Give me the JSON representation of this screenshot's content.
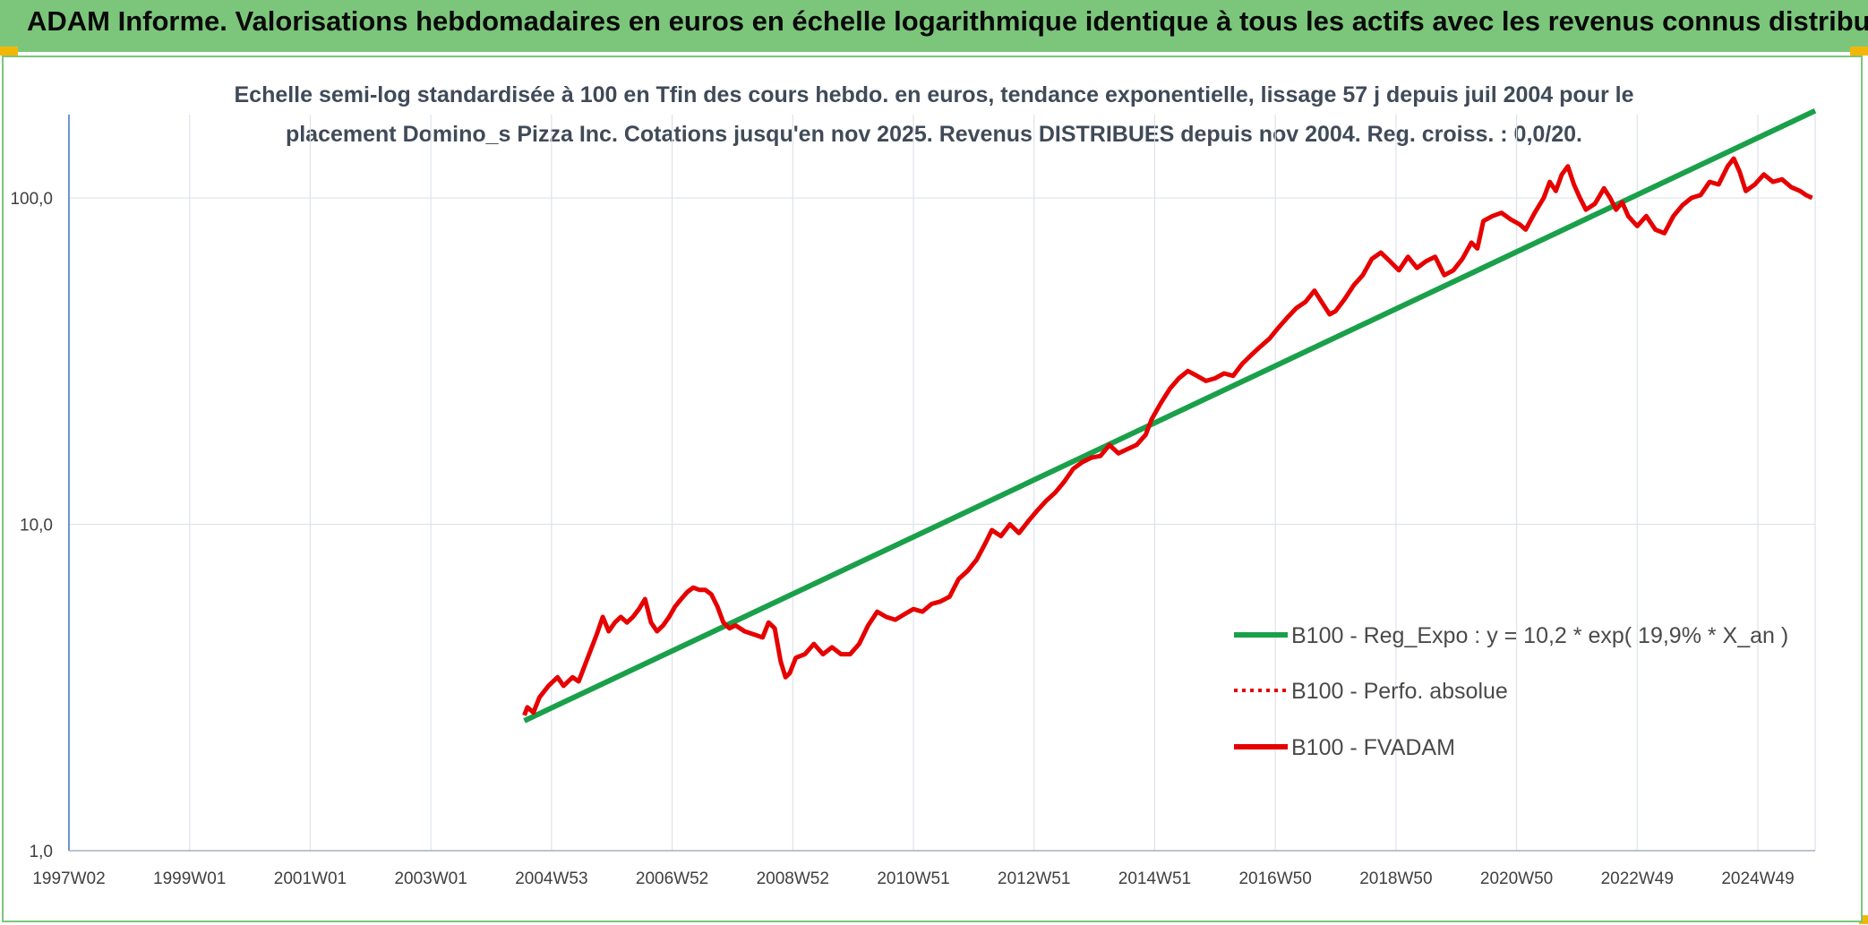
{
  "page": {
    "title": "ADAM Informe. Valorisations hebdomadaires en euros en échelle logarithmique identique à tous les actifs avec les revenus connus distribués"
  },
  "chart_data": {
    "type": "line",
    "subtitle_line1": "Echelle semi-log standardisée à 100 en Tfin des cours hebdo. en euros, tendance exponentielle, lissage 57 j depuis juil 2004 pour le",
    "subtitle_line2": "placement Domino_s Pizza Inc. Cotations jusqu'en nov 2025. Revenus DISTRIBUES depuis nov 2004. Reg. croiss. : 0,0/20.",
    "y_scale": "log",
    "ylim": [
      1,
      180
    ],
    "y_ticks": [
      "1,0",
      "10,0",
      "100,0"
    ],
    "x_range": [
      1997.0,
      2025.95
    ],
    "x_ticks": [
      {
        "label": "1997W02",
        "x": 1997.0
      },
      {
        "label": "1999W01",
        "x": 1999.0
      },
      {
        "label": "2001W01",
        "x": 2001.0
      },
      {
        "label": "2003W01",
        "x": 2003.0
      },
      {
        "label": "2004W53",
        "x": 2005.0
      },
      {
        "label": "2006W52",
        "x": 2007.0
      },
      {
        "label": "2008W52",
        "x": 2009.0
      },
      {
        "label": "2010W51",
        "x": 2011.0
      },
      {
        "label": "2012W51",
        "x": 2013.0
      },
      {
        "label": "2014W51",
        "x": 2015.0
      },
      {
        "label": "2016W50",
        "x": 2017.0
      },
      {
        "label": "2018W50",
        "x": 2019.0
      },
      {
        "label": "2020W50",
        "x": 2021.0
      },
      {
        "label": "2022W49",
        "x": 2023.0
      },
      {
        "label": "2024W49",
        "x": 2025.0
      }
    ],
    "grid": true,
    "legend_position": "bottom-right",
    "colors": {
      "trend": "#1aa04a",
      "fvadam": "#e60000",
      "perfo": "#e60000"
    },
    "series": [
      {
        "name": "B100 - Reg_Expo : y = 10,2 * exp( 19,9% *  X_an )",
        "style": "solid-green",
        "points": [
          [
            2004.55,
            2.5
          ],
          [
            2025.95,
            185
          ]
        ]
      },
      {
        "name": "B100 - Perfo. absolue",
        "style": "dotted-red",
        "points": []
      },
      {
        "name": "B100 - FVADAM",
        "style": "solid-red",
        "points": [
          [
            2004.55,
            2.6
          ],
          [
            2004.6,
            2.75
          ],
          [
            2004.7,
            2.65
          ],
          [
            2004.8,
            2.95
          ],
          [
            2004.95,
            3.2
          ],
          [
            2005.1,
            3.4
          ],
          [
            2005.2,
            3.2
          ],
          [
            2005.35,
            3.4
          ],
          [
            2005.45,
            3.3
          ],
          [
            2005.6,
            3.9
          ],
          [
            2005.75,
            4.6
          ],
          [
            2005.85,
            5.2
          ],
          [
            2005.95,
            4.7
          ],
          [
            2006.05,
            5.0
          ],
          [
            2006.15,
            5.2
          ],
          [
            2006.25,
            5.0
          ],
          [
            2006.35,
            5.2
          ],
          [
            2006.45,
            5.5
          ],
          [
            2006.55,
            5.9
          ],
          [
            2006.65,
            5.0
          ],
          [
            2006.75,
            4.7
          ],
          [
            2006.85,
            4.9
          ],
          [
            2006.95,
            5.2
          ],
          [
            2007.05,
            5.6
          ],
          [
            2007.15,
            5.9
          ],
          [
            2007.25,
            6.2
          ],
          [
            2007.35,
            6.4
          ],
          [
            2007.45,
            6.3
          ],
          [
            2007.55,
            6.3
          ],
          [
            2007.65,
            6.1
          ],
          [
            2007.75,
            5.6
          ],
          [
            2007.85,
            5.0
          ],
          [
            2007.95,
            4.8
          ],
          [
            2008.05,
            4.9
          ],
          [
            2008.2,
            4.7
          ],
          [
            2008.35,
            4.6
          ],
          [
            2008.5,
            4.5
          ],
          [
            2008.6,
            5.0
          ],
          [
            2008.7,
            4.8
          ],
          [
            2008.8,
            3.8
          ],
          [
            2008.88,
            3.4
          ],
          [
            2008.95,
            3.5
          ],
          [
            2009.05,
            3.9
          ],
          [
            2009.2,
            4.0
          ],
          [
            2009.35,
            4.3
          ],
          [
            2009.5,
            4.0
          ],
          [
            2009.65,
            4.2
          ],
          [
            2009.8,
            4.0
          ],
          [
            2009.95,
            4.0
          ],
          [
            2010.1,
            4.3
          ],
          [
            2010.25,
            4.9
          ],
          [
            2010.4,
            5.4
          ],
          [
            2010.55,
            5.2
          ],
          [
            2010.7,
            5.1
          ],
          [
            2010.85,
            5.3
          ],
          [
            2011.0,
            5.5
          ],
          [
            2011.15,
            5.4
          ],
          [
            2011.3,
            5.7
          ],
          [
            2011.45,
            5.8
          ],
          [
            2011.6,
            6.0
          ],
          [
            2011.75,
            6.8
          ],
          [
            2011.9,
            7.2
          ],
          [
            2012.05,
            7.8
          ],
          [
            2012.2,
            8.8
          ],
          [
            2012.3,
            9.6
          ],
          [
            2012.45,
            9.2
          ],
          [
            2012.6,
            10.0
          ],
          [
            2012.75,
            9.4
          ],
          [
            2012.9,
            10.2
          ],
          [
            2013.05,
            11.0
          ],
          [
            2013.2,
            11.8
          ],
          [
            2013.35,
            12.5
          ],
          [
            2013.5,
            13.5
          ],
          [
            2013.65,
            14.8
          ],
          [
            2013.8,
            15.5
          ],
          [
            2013.95,
            16.0
          ],
          [
            2014.1,
            16.2
          ],
          [
            2014.25,
            17.5
          ],
          [
            2014.4,
            16.5
          ],
          [
            2014.55,
            17.0
          ],
          [
            2014.7,
            17.5
          ],
          [
            2014.85,
            18.8
          ],
          [
            2014.95,
            21.0
          ],
          [
            2015.1,
            23.5
          ],
          [
            2015.25,
            26.0
          ],
          [
            2015.4,
            28.0
          ],
          [
            2015.55,
            29.5
          ],
          [
            2015.7,
            28.5
          ],
          [
            2015.85,
            27.5
          ],
          [
            2016.0,
            28.0
          ],
          [
            2016.15,
            29.0
          ],
          [
            2016.3,
            28.5
          ],
          [
            2016.45,
            31.0
          ],
          [
            2016.6,
            33.0
          ],
          [
            2016.75,
            35.0
          ],
          [
            2016.9,
            37.0
          ],
          [
            2017.05,
            40.0
          ],
          [
            2017.2,
            43.0
          ],
          [
            2017.35,
            46.0
          ],
          [
            2017.5,
            48.0
          ],
          [
            2017.65,
            52.0
          ],
          [
            2017.8,
            47.0
          ],
          [
            2017.9,
            44.0
          ],
          [
            2018.0,
            45.0
          ],
          [
            2018.15,
            49.0
          ],
          [
            2018.3,
            54.0
          ],
          [
            2018.45,
            58.0
          ],
          [
            2018.6,
            65.0
          ],
          [
            2018.75,
            68.0
          ],
          [
            2018.9,
            64.0
          ],
          [
            2019.05,
            60.0
          ],
          [
            2019.2,
            66.0
          ],
          [
            2019.35,
            61.0
          ],
          [
            2019.5,
            64.0
          ],
          [
            2019.65,
            66.0
          ],
          [
            2019.8,
            58.0
          ],
          [
            2019.95,
            60.0
          ],
          [
            2020.1,
            65.0
          ],
          [
            2020.25,
            73.0
          ],
          [
            2020.35,
            70.0
          ],
          [
            2020.45,
            85.0
          ],
          [
            2020.6,
            88.0
          ],
          [
            2020.75,
            90.0
          ],
          [
            2020.9,
            86.0
          ],
          [
            2021.05,
            83.0
          ],
          [
            2021.15,
            80.0
          ],
          [
            2021.3,
            90.0
          ],
          [
            2021.45,
            100.0
          ],
          [
            2021.55,
            112.0
          ],
          [
            2021.65,
            105.0
          ],
          [
            2021.75,
            118.0
          ],
          [
            2021.85,
            125.0
          ],
          [
            2021.95,
            110.0
          ],
          [
            2022.05,
            100.0
          ],
          [
            2022.15,
            92.0
          ],
          [
            2022.3,
            96.0
          ],
          [
            2022.45,
            107.0
          ],
          [
            2022.55,
            100.0
          ],
          [
            2022.65,
            92.0
          ],
          [
            2022.75,
            97.0
          ],
          [
            2022.85,
            88.0
          ],
          [
            2023.0,
            82.0
          ],
          [
            2023.15,
            88.0
          ],
          [
            2023.3,
            80.0
          ],
          [
            2023.45,
            78.0
          ],
          [
            2023.6,
            88.0
          ],
          [
            2023.75,
            95.0
          ],
          [
            2023.9,
            100.0
          ],
          [
            2024.05,
            102.0
          ],
          [
            2024.2,
            112.0
          ],
          [
            2024.35,
            110.0
          ],
          [
            2024.5,
            125.0
          ],
          [
            2024.6,
            132.0
          ],
          [
            2024.7,
            120.0
          ],
          [
            2024.8,
            105.0
          ],
          [
            2024.95,
            110.0
          ],
          [
            2025.1,
            118.0
          ],
          [
            2025.25,
            112.0
          ],
          [
            2025.4,
            114.0
          ],
          [
            2025.55,
            108.0
          ],
          [
            2025.7,
            105.0
          ],
          [
            2025.8,
            102.0
          ],
          [
            2025.9,
            100.0
          ]
        ]
      }
    ]
  }
}
